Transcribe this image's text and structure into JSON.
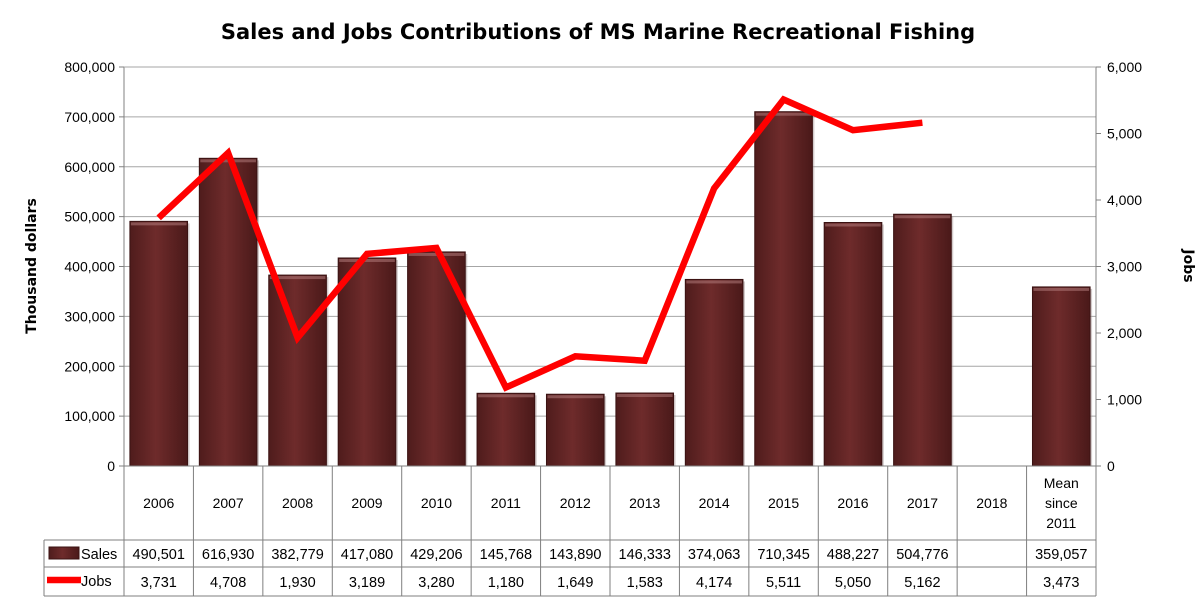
{
  "chart_data": {
    "type": "bar",
    "title": "Sales and Jobs Contributions of MS Marine Recreational Fishing",
    "categories": [
      "2006",
      "2007",
      "2008",
      "2009",
      "2010",
      "2011",
      "2012",
      "2013",
      "2014",
      "2015",
      "2016",
      "2017",
      "2018",
      "Mean since 2011"
    ],
    "category_lines": [
      [
        "2006"
      ],
      [
        "2007"
      ],
      [
        "2008"
      ],
      [
        "2009"
      ],
      [
        "2010"
      ],
      [
        "2011"
      ],
      [
        "2012"
      ],
      [
        "2013"
      ],
      [
        "2014"
      ],
      [
        "2015"
      ],
      [
        "2016"
      ],
      [
        "2017"
      ],
      [
        "2018"
      ],
      [
        "Mean",
        "since",
        "2011"
      ]
    ],
    "ylabel": "Thousand dollars",
    "y2label": "Jobs",
    "ylim": [
      0,
      800000
    ],
    "y2lim": [
      0,
      6000
    ],
    "yticks": [
      "0",
      "100,000",
      "200,000",
      "300,000",
      "400,000",
      "500,000",
      "600,000",
      "700,000",
      "800,000"
    ],
    "y2ticks": [
      "0",
      "1,000",
      "2,000",
      "3,000",
      "4,000",
      "5,000",
      "6,000"
    ],
    "grid": true,
    "legend_position": "data-table",
    "series": [
      {
        "name": "Sales",
        "type": "bar",
        "axis": "left",
        "color": "#6B2A2A",
        "values": [
          490501,
          616930,
          382779,
          417080,
          429206,
          145768,
          143890,
          146333,
          374063,
          710345,
          488227,
          504776,
          null,
          359057
        ],
        "labels": [
          "490,501",
          "616,930",
          "382,779",
          "417,080",
          "429,206",
          "145,768",
          "143,890",
          "146,333",
          "374,063",
          "710,345",
          "488,227",
          "504,776",
          "",
          "359,057"
        ]
      },
      {
        "name": "Jobs",
        "type": "line",
        "axis": "right",
        "color": "#FF0000",
        "values": [
          3731,
          4708,
          1930,
          3189,
          3280,
          1180,
          1649,
          1583,
          4174,
          5511,
          5050,
          5162,
          null,
          null
        ],
        "labels": [
          "3,731",
          "4,708",
          "1,930",
          "3,189",
          "3,280",
          "1,180",
          "1,649",
          "1,583",
          "4,174",
          "5,511",
          "5,050",
          "5,162",
          "",
          "3,473"
        ]
      }
    ]
  }
}
